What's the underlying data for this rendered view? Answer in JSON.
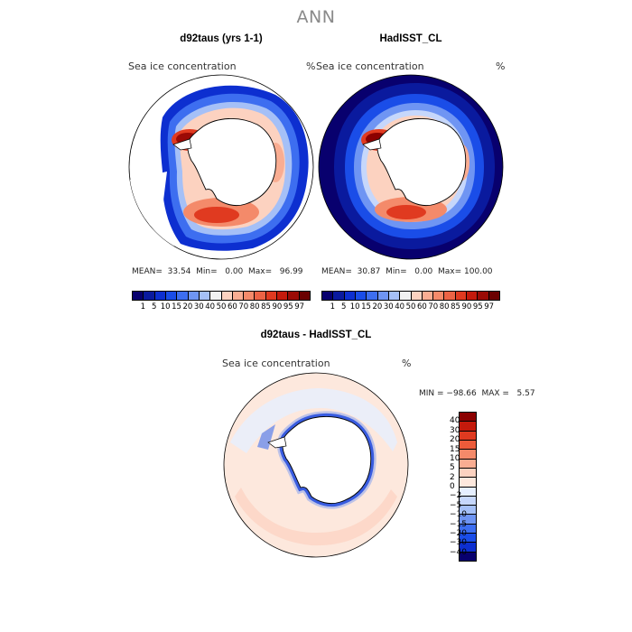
{
  "title": "ANN",
  "panels": [
    {
      "title": "d92taus (yrs 1-1)",
      "field": "Sea ice concentration",
      "units": "%",
      "stats": {
        "mean": "33.54",
        "min": "0.00",
        "max": "96.99"
      }
    },
    {
      "title": "HadISST_CL",
      "field": "Sea ice concentration",
      "units": "%",
      "stats": {
        "mean": "30.87",
        "min": "0.00",
        "max": "100.00"
      }
    }
  ],
  "diff": {
    "title": "d92taus - HadISST_CL",
    "field": "Sea ice concentration",
    "units": "%",
    "minmax": "MIN = −98.66  MAX =   5.57"
  },
  "labels": {
    "mean": "MEAN=",
    "min": "Min=",
    "max": "Max="
  },
  "colorbar_abs": {
    "ticks": [
      "1",
      "5",
      "10",
      "15",
      "20",
      "30",
      "40",
      "50",
      "60",
      "70",
      "80",
      "85",
      "90",
      "95",
      "97"
    ],
    "colors": [
      "#08006e",
      "#0a1a9e",
      "#0d2fd0",
      "#1a4de8",
      "#3d6ef0",
      "#6f95f3",
      "#a5c0f7",
      "#f2f2f2",
      "#fcd2c0",
      "#f9ad92",
      "#f48a6a",
      "#ec6345",
      "#e03a20",
      "#c41a0c",
      "#9b0a05",
      "#6b0000"
    ]
  },
  "colorbar_diff": {
    "ticks": [
      "40",
      "30",
      "20",
      "15",
      "10",
      "5",
      "2",
      "0",
      "−2",
      "−5",
      "−10",
      "−15",
      "−20",
      "−30",
      "−40"
    ],
    "colors": [
      "#8b0000",
      "#c41a0c",
      "#e03a20",
      "#ec5b3a",
      "#f48a6a",
      "#f9ad92",
      "#fcd2c0",
      "#fde8dd",
      "#e6efff",
      "#c6d7fb",
      "#a5c0f7",
      "#6f95f3",
      "#3d6ef0",
      "#1a4de8",
      "#0d2fd0",
      "#08006e"
    ]
  }
}
